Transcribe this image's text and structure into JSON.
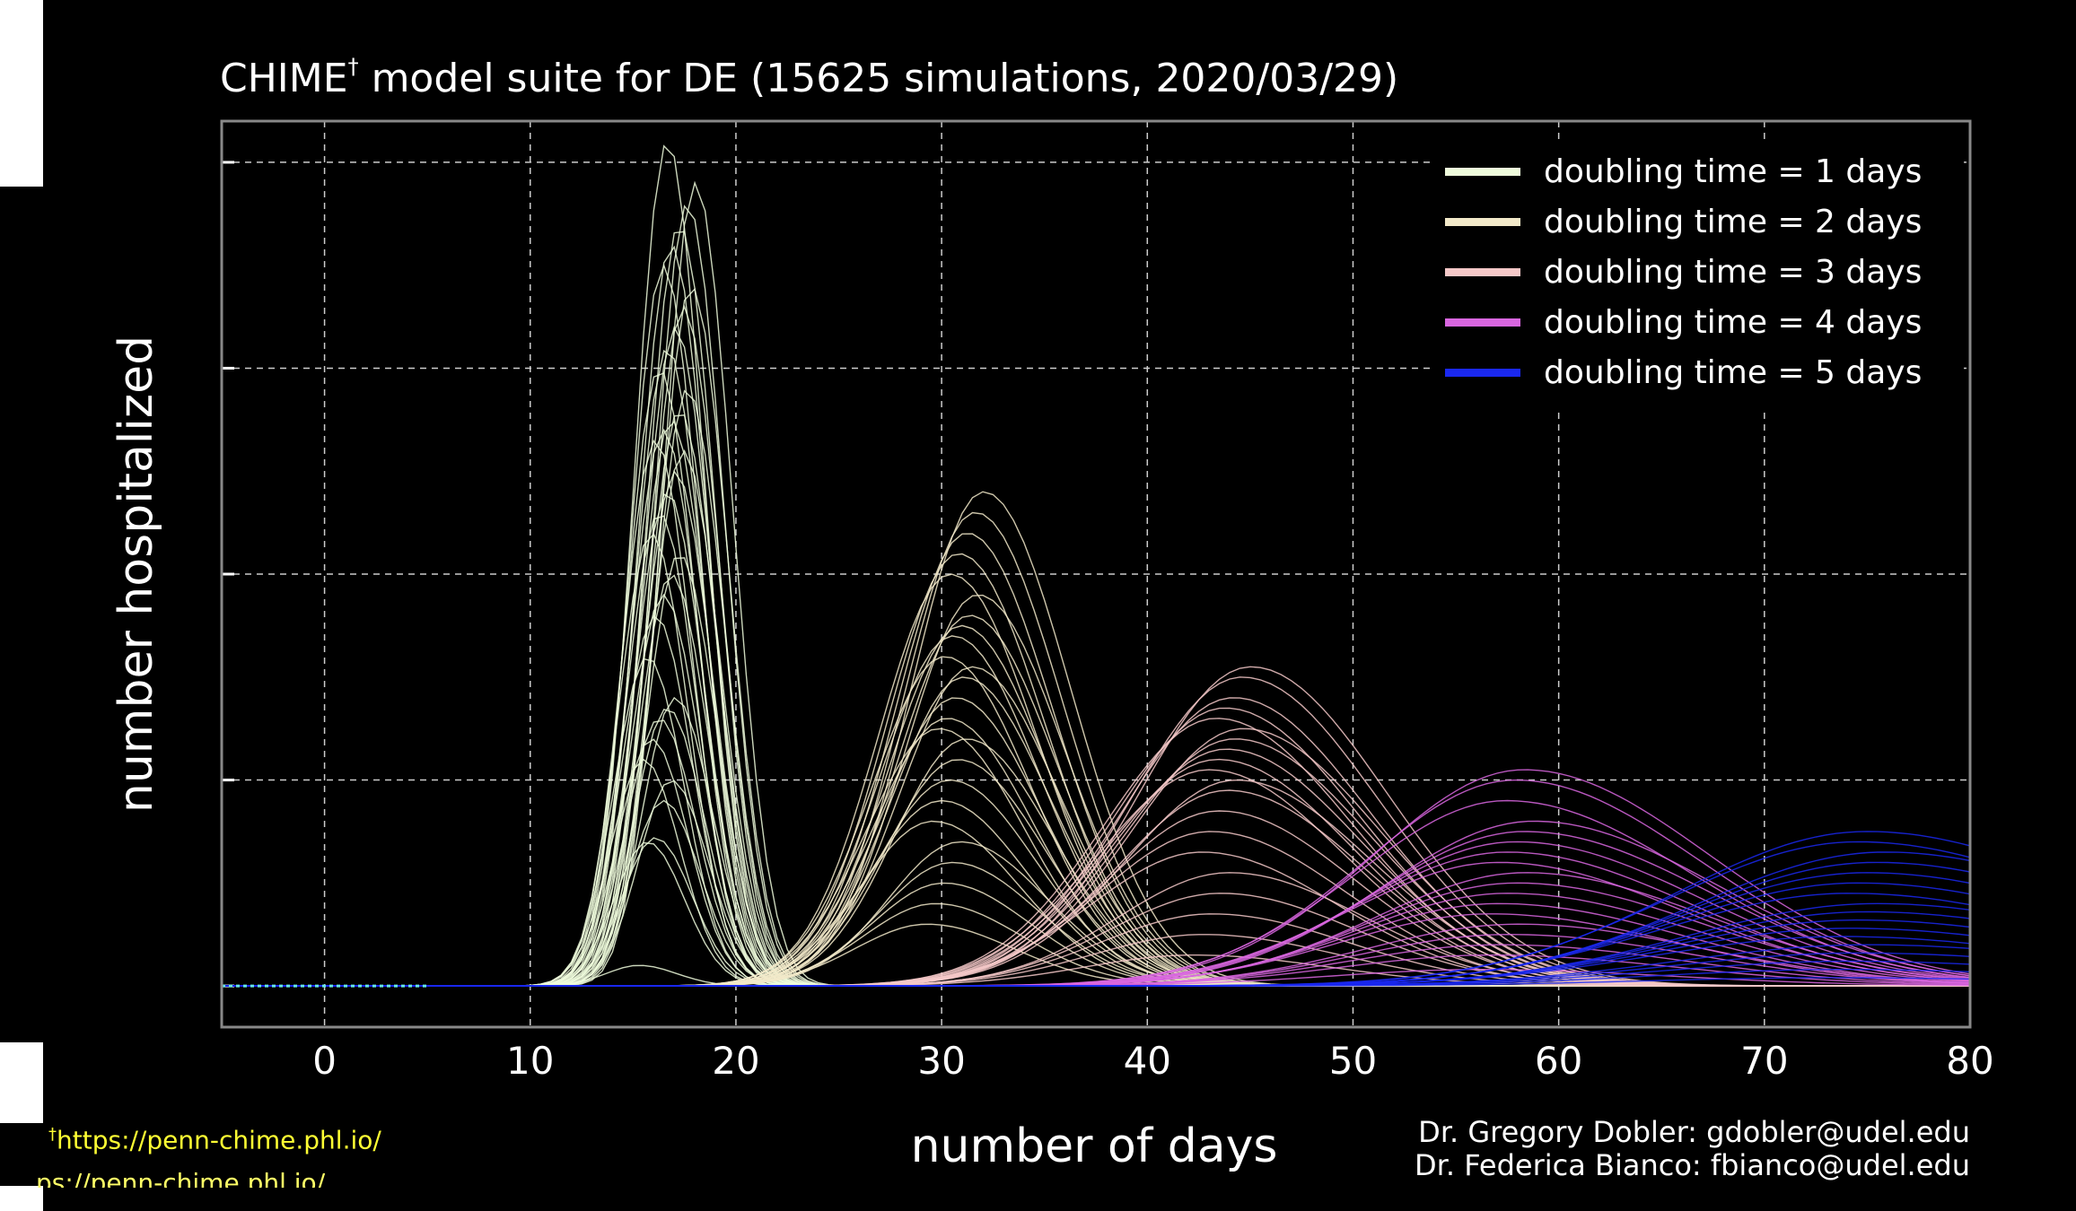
{
  "title": {
    "prefix": "CHIME",
    "dagger": "†",
    "rest": "model suite for DE (15625 simulations, 2020/03/29)"
  },
  "footnote": {
    "dagger": "†",
    "url": "https://penn-chime.phl.io/",
    "ghost": "ps://penn-chime.phl.io/"
  },
  "credits": [
    "Dr. Gregory Dobler: gdobler@udel.edu",
    "Dr. Federica Bianco: fbianco@udel.edu"
  ],
  "colors": {
    "background": "#000000",
    "grid": "#cccccc",
    "axis_frame": "#888888",
    "footnote": "#ffff33"
  },
  "chart_data": {
    "type": "line",
    "title": "CHIME† model suite for DE (15625 simulations, 2020/03/29)",
    "xlabel": "number of days",
    "ylabel": "number hospitalized",
    "xlim": [
      -5,
      80
    ],
    "ylim": [
      -0.2,
      4.2
    ],
    "x_ticks": [
      0,
      10,
      20,
      30,
      40,
      50,
      60,
      70,
      80
    ],
    "x_tick_labels": [
      "0",
      "10",
      "20",
      "30",
      "40",
      "50",
      "60",
      "70",
      "80"
    ],
    "y_ticks": [
      0,
      1,
      2,
      3,
      4
    ],
    "y_tick_labels_shown": false,
    "grid": true,
    "legend_position": "top-right",
    "series": [
      {
        "name": "doubling time = 1 days",
        "color": "#eefbdc",
        "peak_day": 16,
        "peak_values": [
          0.1,
          0.7,
          0.72,
          0.9,
          1.0,
          1.1,
          1.2,
          1.3,
          1.35,
          1.4,
          1.6,
          1.8,
          1.9,
          2.0,
          2.1,
          2.2,
          2.3,
          2.4,
          2.5,
          2.6,
          2.65,
          2.7,
          2.75,
          2.8,
          2.9,
          3.0,
          3.1,
          3.2,
          3.3,
          3.4,
          3.5,
          3.6,
          3.7,
          3.8,
          3.9,
          4.1
        ]
      },
      {
        "name": "doubling time = 2 days",
        "color": "#f2e9c9",
        "peak_day": 30,
        "peak_values": [
          0.3,
          0.4,
          0.5,
          0.6,
          0.7,
          0.8,
          0.9,
          1.0,
          1.1,
          1.2,
          1.25,
          1.3,
          1.4,
          1.5,
          1.55,
          1.6,
          1.7,
          1.75,
          1.8,
          1.9,
          2.0,
          2.1,
          2.2,
          2.3,
          2.4
        ]
      },
      {
        "name": "doubling time = 3 days",
        "color": "#f5c8c8",
        "peak_day": 43,
        "peak_values": [
          0.15,
          0.25,
          0.35,
          0.45,
          0.55,
          0.65,
          0.75,
          0.85,
          0.95,
          1.0,
          1.05,
          1.1,
          1.15,
          1.2,
          1.25,
          1.3,
          1.35,
          1.4,
          1.5,
          1.55
        ]
      },
      {
        "name": "doubling time = 4 days",
        "color": "#d966e0",
        "peak_day": 57,
        "peak_values": [
          0.08,
          0.15,
          0.2,
          0.25,
          0.3,
          0.35,
          0.4,
          0.45,
          0.5,
          0.55,
          0.6,
          0.65,
          0.7,
          0.75,
          0.8,
          0.9,
          1.0,
          1.05
        ]
      },
      {
        "name": "doubling time = 5 days",
        "color": "#1a28f0",
        "peak_day": 74,
        "peak_values": [
          0.04,
          0.08,
          0.12,
          0.16,
          0.2,
          0.24,
          0.28,
          0.32,
          0.36,
          0.4,
          0.45,
          0.5,
          0.55,
          0.6,
          0.65,
          0.7,
          0.75
        ]
      }
    ]
  }
}
